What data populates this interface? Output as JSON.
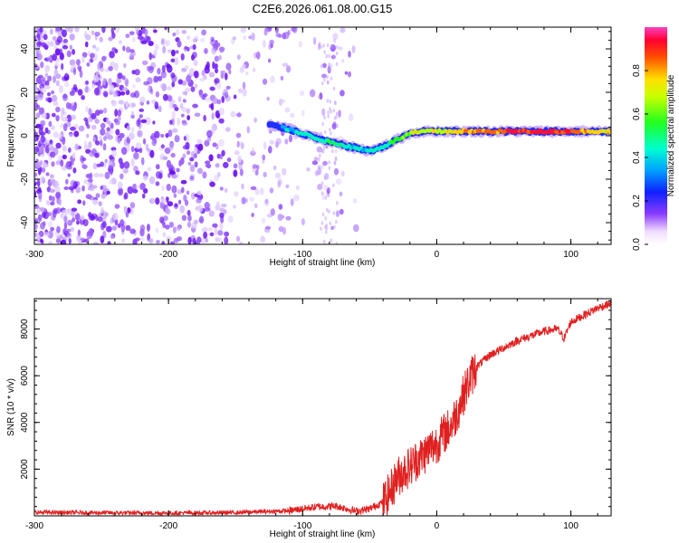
{
  "title": "C2E6.2026.061.08.00.G15",
  "colors": {
    "signal": "#e02020",
    "noise": "#7a1cff",
    "axis": "#000000"
  },
  "chart_data": [
    {
      "type": "heatmap",
      "name": "spectrogram",
      "xlabel": "Height of straight line (km)",
      "ylabel": "Frequency (Hz)",
      "xlim": [
        -300,
        130
      ],
      "ylim": [
        -50,
        50
      ],
      "xticks": [
        -300,
        -200,
        -100,
        0,
        100
      ],
      "yticks": [
        -40,
        -20,
        0,
        20,
        40
      ],
      "colorbar": {
        "label": "Normalized spectral amplitude",
        "range": [
          0,
          1
        ],
        "ticks": [
          0.0,
          0.2,
          0.4,
          0.6,
          0.8
        ]
      },
      "trace": {
        "description_points_x": [
          -125,
          -110,
          -95,
          -80,
          -65,
          -50,
          -40,
          -30,
          -20,
          -10,
          0,
          20,
          50,
          80,
          100,
          130
        ],
        "frequency_hz": [
          5,
          3,
          0,
          -3,
          -5,
          -7,
          -5,
          -2,
          1,
          2,
          2,
          2,
          2,
          2,
          2,
          2
        ],
        "amplitude": [
          0.3,
          0.45,
          0.5,
          0.55,
          0.5,
          0.45,
          0.5,
          0.6,
          0.7,
          0.75,
          0.7,
          0.8,
          0.85,
          0.95,
          0.85,
          0.7
        ]
      }
    },
    {
      "type": "line",
      "name": "snr",
      "xlabel": "Height of straight line (km)",
      "ylabel": "SNR (10 * v/v)",
      "xlim": [
        -300,
        130
      ],
      "ylim": [
        0,
        9300
      ],
      "xticks": [
        -300,
        -200,
        -100,
        0,
        100
      ],
      "yticks": [
        2000,
        4000,
        6000,
        8000
      ],
      "series": [
        {
          "name": "SNR",
          "x": [
            -300,
            -250,
            -200,
            -150,
            -110,
            -90,
            -75,
            -60,
            -50,
            -40,
            -35,
            -30,
            -25,
            -20,
            -15,
            -10,
            -5,
            0,
            5,
            10,
            15,
            20,
            25,
            30,
            40,
            50,
            60,
            70,
            80,
            90,
            95,
            100,
            110,
            120,
            130
          ],
          "y": [
            150,
            130,
            120,
            140,
            220,
            380,
            420,
            200,
            300,
            600,
            1000,
            1600,
            1900,
            2100,
            2400,
            2600,
            2900,
            3100,
            3500,
            3800,
            4400,
            5200,
            5900,
            6400,
            6900,
            7200,
            7500,
            7700,
            7900,
            8000,
            7600,
            8300,
            8600,
            8900,
            9100
          ]
        }
      ]
    }
  ]
}
